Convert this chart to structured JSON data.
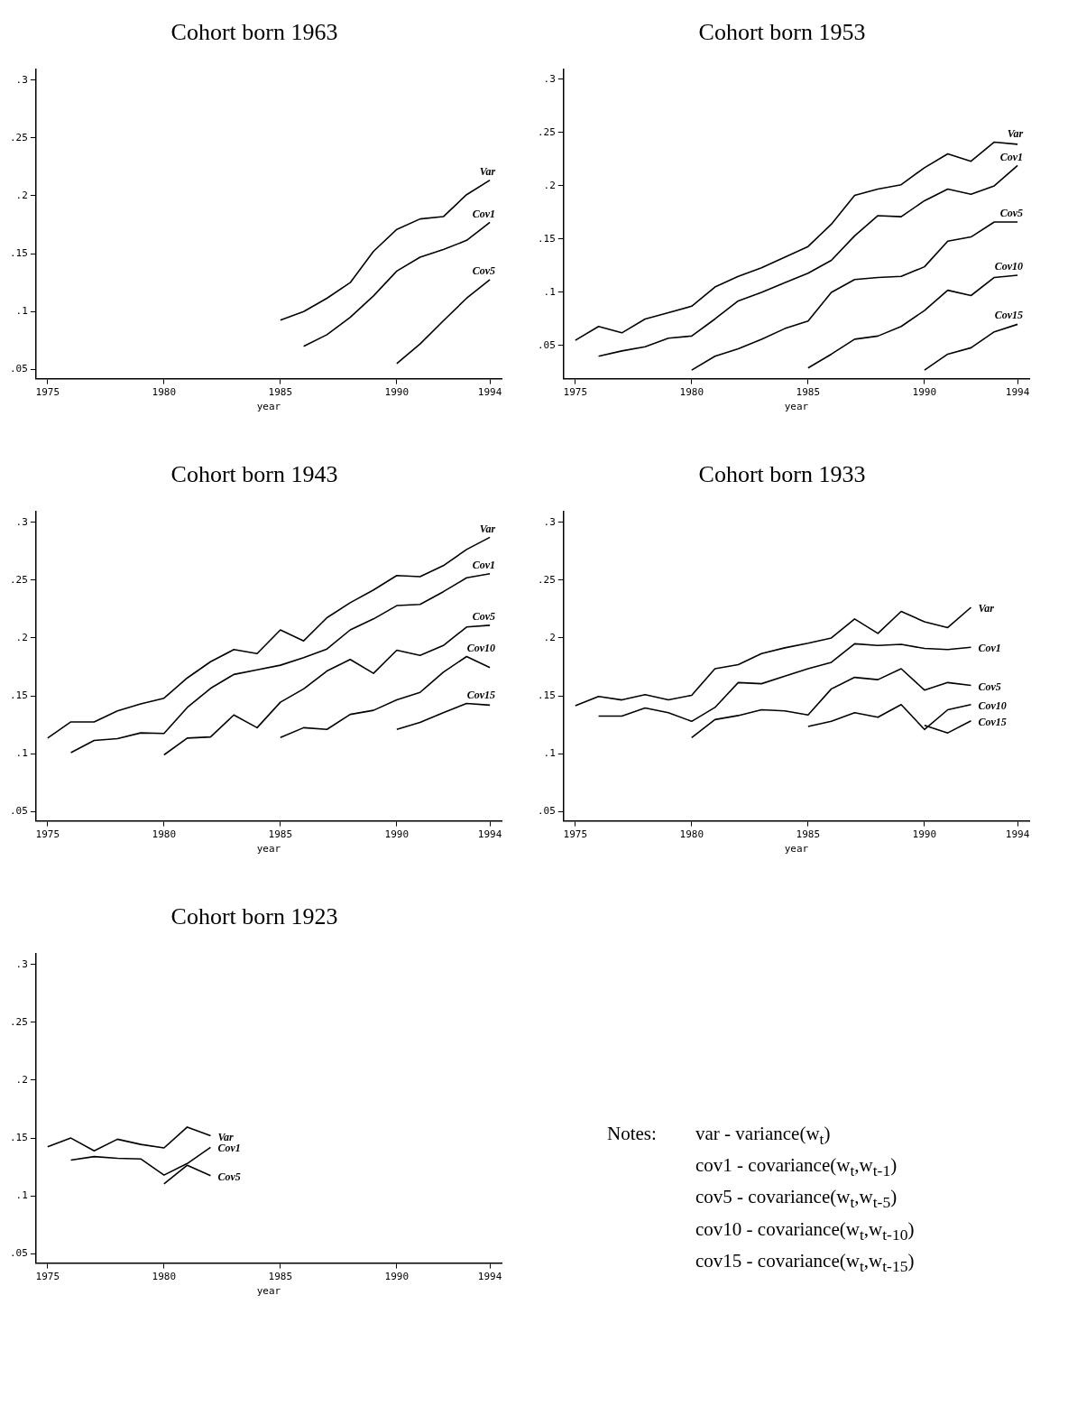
{
  "chart_data": [
    {
      "type": "line",
      "title": "Cohort born 1963",
      "xlabel": "year",
      "xlim": [
        1974.5,
        1994.5
      ],
      "xticks": [
        1975,
        1980,
        1985,
        1990,
        1994
      ],
      "ylim": [
        0.042,
        0.309
      ],
      "yticks": [
        {
          "value": 0.05,
          "label": ".05"
        },
        {
          "value": 0.1,
          "label": ".1"
        },
        {
          "value": 0.15,
          "label": ".15"
        },
        {
          "value": 0.2,
          "label": ".2"
        },
        {
          "value": 0.25,
          "label": ".25"
        },
        {
          "value": 0.3,
          "label": ".3"
        }
      ],
      "grid": false,
      "legend": false,
      "marker": "none",
      "series": [
        {
          "name": "Var",
          "color": "#000000",
          "x": [
            1985,
            1986,
            1987,
            1988,
            1989,
            1990,
            1991,
            1992,
            1993,
            1994
          ],
          "values": [
            0.0925,
            0.1,
            0.1115,
            0.125,
            0.152,
            0.171,
            0.18,
            0.182,
            0.201,
            0.2135
          ]
        },
        {
          "name": "Cov1",
          "color": "#000000",
          "x": [
            1986,
            1987,
            1988,
            1989,
            1990,
            1991,
            1992,
            1993,
            1994
          ],
          "values": [
            0.07,
            0.08,
            0.095,
            0.1135,
            0.135,
            0.147,
            0.1535,
            0.1615,
            0.177
          ]
        },
        {
          "name": "Cov5",
          "color": "#000000",
          "x": [
            1990,
            1991,
            1992,
            1993,
            1994
          ],
          "values": [
            0.055,
            0.072,
            0.092,
            0.1115,
            0.1275
          ]
        }
      ]
    },
    {
      "type": "line",
      "title": "Cohort born 1953",
      "xlabel": "year",
      "xlim": [
        1974.5,
        1994.5
      ],
      "xticks": [
        1975,
        1980,
        1985,
        1990,
        1994
      ],
      "ylim": [
        0.019,
        0.309
      ],
      "yticks": [
        {
          "value": 0.05,
          "label": ".05"
        },
        {
          "value": 0.1,
          "label": ".1"
        },
        {
          "value": 0.15,
          "label": ".15"
        },
        {
          "value": 0.2,
          "label": ".2"
        },
        {
          "value": 0.25,
          "label": ".25"
        },
        {
          "value": 0.3,
          "label": ".3"
        }
      ],
      "grid": false,
      "legend": false,
      "marker": "none",
      "series": [
        {
          "name": "Var",
          "color": "#000000",
          "x": [
            1975,
            1976,
            1977,
            1978,
            1979,
            1980,
            1981,
            1982,
            1983,
            1984,
            1985,
            1986,
            1987,
            1988,
            1989,
            1990,
            1991,
            1992,
            1993,
            1994
          ],
          "values": [
            0.055,
            0.068,
            0.062,
            0.075,
            0.081,
            0.087,
            0.105,
            0.115,
            0.123,
            0.133,
            0.143,
            0.164,
            0.191,
            0.197,
            0.201,
            0.217,
            0.23,
            0.223,
            0.241,
            0.239
          ]
        },
        {
          "name": "Cov1",
          "color": "#000000",
          "x": [
            1976,
            1977,
            1978,
            1979,
            1980,
            1981,
            1982,
            1983,
            1984,
            1985,
            1986,
            1987,
            1988,
            1989,
            1990,
            1991,
            1992,
            1993,
            1994
          ],
          "values": [
            0.04,
            0.045,
            0.049,
            0.057,
            0.059,
            0.075,
            0.092,
            0.1,
            0.109,
            0.118,
            0.13,
            0.153,
            0.172,
            0.171,
            0.186,
            0.197,
            0.192,
            0.2,
            0.219
          ]
        },
        {
          "name": "Cov5",
          "color": "#000000",
          "x": [
            1980,
            1981,
            1982,
            1983,
            1984,
            1985,
            1986,
            1987,
            1988,
            1989,
            1990,
            1991,
            1992,
            1993,
            1994
          ],
          "values": [
            0.027,
            0.04,
            0.047,
            0.056,
            0.066,
            0.073,
            0.1,
            0.112,
            0.114,
            0.115,
            0.124,
            0.148,
            0.152,
            0.166,
            0.166
          ]
        },
        {
          "name": "Cov10",
          "color": "#000000",
          "x": [
            1985,
            1986,
            1987,
            1988,
            1989,
            1990,
            1991,
            1992,
            1993,
            1994
          ],
          "values": [
            0.029,
            0.042,
            0.056,
            0.059,
            0.068,
            0.083,
            0.102,
            0.097,
            0.114,
            0.116
          ]
        },
        {
          "name": "Cov15",
          "color": "#000000",
          "x": [
            1990,
            1991,
            1992,
            1993,
            1994
          ],
          "values": [
            0.027,
            0.042,
            0.048,
            0.063,
            0.07
          ]
        }
      ]
    },
    {
      "type": "line",
      "title": "Cohort born 1943",
      "xlabel": "year",
      "xlim": [
        1974.5,
        1994.5
      ],
      "xticks": [
        1975,
        1980,
        1985,
        1990,
        1994
      ],
      "ylim": [
        0.042,
        0.309
      ],
      "yticks": [
        {
          "value": 0.05,
          "label": ".05"
        },
        {
          "value": 0.1,
          "label": ".1"
        },
        {
          "value": 0.15,
          "label": ".15"
        },
        {
          "value": 0.2,
          "label": ".2"
        },
        {
          "value": 0.25,
          "label": ".25"
        },
        {
          "value": 0.3,
          "label": ".3"
        }
      ],
      "grid": false,
      "legend": false,
      "marker": "none",
      "series": [
        {
          "name": "Var",
          "color": "#000000",
          "x": [
            1975,
            1976,
            1977,
            1978,
            1979,
            1980,
            1981,
            1982,
            1983,
            1984,
            1985,
            1986,
            1987,
            1988,
            1989,
            1990,
            1991,
            1992,
            1993,
            1994
          ],
          "values": [
            0.1135,
            0.1275,
            0.1275,
            0.137,
            0.143,
            0.148,
            0.1655,
            0.1795,
            0.19,
            0.1865,
            0.207,
            0.1975,
            0.2175,
            0.2305,
            0.2415,
            0.254,
            0.253,
            0.2625,
            0.2765,
            0.287
          ]
        },
        {
          "name": "Cov1",
          "color": "#000000",
          "x": [
            1976,
            1977,
            1978,
            1979,
            1980,
            1981,
            1982,
            1983,
            1984,
            1985,
            1986,
            1987,
            1988,
            1989,
            1990,
            1991,
            1992,
            1993,
            1994
          ],
          "values": [
            0.101,
            0.1115,
            0.113,
            0.118,
            0.1175,
            0.14,
            0.1565,
            0.1685,
            0.1725,
            0.1765,
            0.183,
            0.1905,
            0.207,
            0.2165,
            0.228,
            0.229,
            0.24,
            0.252,
            0.2555
          ]
        },
        {
          "name": "Cov5",
          "color": "#000000",
          "x": [
            1980,
            1981,
            1982,
            1983,
            1984,
            1985,
            1986,
            1987,
            1988,
            1989,
            1990,
            1991,
            1992,
            1993,
            1994
          ],
          "values": [
            0.099,
            0.1135,
            0.1145,
            0.1335,
            0.1225,
            0.1445,
            0.156,
            0.1715,
            0.1815,
            0.1695,
            0.1895,
            0.185,
            0.1935,
            0.2095,
            0.211
          ]
        },
        {
          "name": "Cov10",
          "color": "#000000",
          "x": [
            1985,
            1986,
            1987,
            1988,
            1989,
            1990,
            1991,
            1992,
            1993,
            1994
          ],
          "values": [
            0.114,
            0.1225,
            0.121,
            0.134,
            0.1375,
            0.1465,
            0.153,
            0.1705,
            0.184,
            0.1745
          ]
        },
        {
          "name": "Cov15",
          "color": "#000000",
          "x": [
            1990,
            1991,
            1992,
            1993,
            1994
          ],
          "values": [
            0.121,
            0.127,
            0.1355,
            0.1435,
            0.142
          ]
        }
      ]
    },
    {
      "type": "line",
      "title": "Cohort born 1933",
      "xlabel": "year",
      "xlim": [
        1974.5,
        1994.5
      ],
      "xticks": [
        1975,
        1980,
        1985,
        1990,
        1994
      ],
      "ylim": [
        0.042,
        0.309
      ],
      "yticks": [
        {
          "value": 0.05,
          "label": ".05"
        },
        {
          "value": 0.1,
          "label": ".1"
        },
        {
          "value": 0.15,
          "label": ".15"
        },
        {
          "value": 0.2,
          "label": ".2"
        },
        {
          "value": 0.25,
          "label": ".25"
        },
        {
          "value": 0.3,
          "label": ".3"
        }
      ],
      "grid": false,
      "legend": false,
      "marker": "none",
      "series": [
        {
          "name": "Var",
          "color": "#000000",
          "x": [
            1975,
            1976,
            1977,
            1978,
            1979,
            1980,
            1981,
            1982,
            1983,
            1984,
            1985,
            1986,
            1987,
            1988,
            1989,
            1990,
            1991,
            1992
          ],
          "values": [
            0.1415,
            0.1495,
            0.1465,
            0.151,
            0.1465,
            0.1505,
            0.1735,
            0.177,
            0.1865,
            0.1915,
            0.1955,
            0.2,
            0.2165,
            0.204,
            0.223,
            0.214,
            0.209,
            0.2265
          ]
        },
        {
          "name": "Cov1",
          "color": "#000000",
          "x": [
            1976,
            1977,
            1978,
            1979,
            1980,
            1981,
            1982,
            1983,
            1984,
            1985,
            1986,
            1987,
            1988,
            1989,
            1990,
            1991,
            1992
          ],
          "values": [
            0.1325,
            0.1325,
            0.1395,
            0.1355,
            0.128,
            0.14,
            0.1615,
            0.1605,
            0.167,
            0.1735,
            0.179,
            0.195,
            0.1935,
            0.1945,
            0.191,
            0.19,
            0.192
          ]
        },
        {
          "name": "Cov5",
          "color": "#000000",
          "x": [
            1980,
            1981,
            1982,
            1983,
            1984,
            1985,
            1986,
            1987,
            1988,
            1989,
            1990,
            1991,
            1992
          ],
          "values": [
            0.114,
            0.1295,
            0.133,
            0.138,
            0.137,
            0.1335,
            0.156,
            0.166,
            0.164,
            0.1735,
            0.155,
            0.1615,
            0.159
          ]
        },
        {
          "name": "Cov10",
          "color": "#000000",
          "x": [
            1985,
            1986,
            1987,
            1988,
            1989,
            1990,
            1991,
            1992
          ],
          "values": [
            0.1235,
            0.128,
            0.1355,
            0.1315,
            0.1425,
            0.121,
            0.138,
            0.1425
          ]
        },
        {
          "name": "Cov15",
          "color": "#000000",
          "x": [
            1990,
            1991,
            1992
          ],
          "values": [
            0.1245,
            0.118,
            0.1285
          ]
        }
      ]
    },
    {
      "type": "line",
      "title": "Cohort born 1923",
      "xlabel": "year",
      "xlim": [
        1974.5,
        1994.5
      ],
      "xticks": [
        1975,
        1980,
        1985,
        1990,
        1994
      ],
      "ylim": [
        0.042,
        0.309
      ],
      "yticks": [
        {
          "value": 0.05,
          "label": ".05"
        },
        {
          "value": 0.1,
          "label": ".1"
        },
        {
          "value": 0.15,
          "label": ".15"
        },
        {
          "value": 0.2,
          "label": ".2"
        },
        {
          "value": 0.25,
          "label": ".25"
        },
        {
          "value": 0.3,
          "label": ".3"
        }
      ],
      "grid": false,
      "legend": false,
      "marker": "none",
      "series": [
        {
          "name": "Var",
          "color": "#000000",
          "x": [
            1975,
            1976,
            1977,
            1978,
            1979,
            1980,
            1981,
            1982
          ],
          "values": [
            0.1425,
            0.15,
            0.139,
            0.149,
            0.1445,
            0.1415,
            0.1595,
            0.152
          ]
        },
        {
          "name": "Cov1",
          "color": "#000000",
          "x": [
            1976,
            1977,
            1978,
            1979,
            1980,
            1981,
            1982
          ],
          "values": [
            0.131,
            0.134,
            0.1325,
            0.132,
            0.118,
            0.128,
            0.142
          ]
        },
        {
          "name": "Cov5",
          "color": "#000000",
          "x": [
            1980,
            1981,
            1982
          ],
          "values": [
            0.1105,
            0.1265,
            0.1175
          ]
        }
      ]
    },
    {
      "type": "other",
      "annotations": [
        "Notes:",
        "var - variance(w$_{t}$)",
        "cov1 - covariance(w$_{t}$,w$_{t-1}$)",
        "cov5 - covariance(w$_{t}$,w$_{t-5}$)",
        "cov10 - covariance(w$_{t}$,w$_{t-10}$)",
        "cov15 - covariance(w$_{t}$,w$_{t-15}$)"
      ]
    }
  ]
}
